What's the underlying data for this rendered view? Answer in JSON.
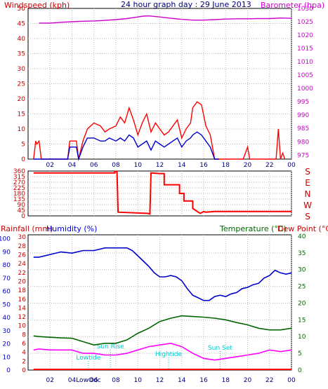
{
  "chart_data": [
    {
      "type": "line",
      "title": "24 hour graph day : 29 June 2013",
      "ylabel_left": "Windspeed (kph)",
      "ylabel_right": "Barometer (hpa)",
      "y_ticks_left": [
        "0",
        "5",
        "10",
        "15",
        "20",
        "25",
        "30",
        "35",
        "40",
        "45",
        "50"
      ],
      "y_ticks_right": [
        "975",
        "980",
        "985",
        "990",
        "995",
        "1000",
        "1005",
        "1010",
        "1015",
        "1020",
        "1025",
        "1030"
      ],
      "x_ticks": [
        "02",
        "04",
        "06",
        "08",
        "10",
        "12",
        "14",
        "16",
        "18",
        "20",
        "22",
        "00"
      ],
      "ylim_left": [
        0,
        50
      ],
      "ylim_right": [
        973.5,
        1030
      ],
      "colors": {
        "gust": "#ff0000",
        "average": "#0000cc",
        "barometer": "#cc00cc",
        "axis_left": "#cc0000",
        "axis_right": "#cc00cc",
        "title": "#000080"
      },
      "series": [
        {
          "name": "Barometer",
          "axis": "right",
          "x": [
            1,
            2,
            3,
            4,
            5,
            6,
            7,
            8,
            9,
            10,
            10.5,
            11,
            12,
            13,
            14,
            15,
            16,
            17,
            18,
            19,
            20,
            21,
            22,
            23,
            24
          ],
          "values": [
            1024.5,
            1024.5,
            1024.8,
            1025,
            1025.2,
            1025.3,
            1025.5,
            1025.8,
            1026.2,
            1026.8,
            1027.1,
            1027.2,
            1026.8,
            1026.3,
            1025.9,
            1025.6,
            1025.6,
            1025.8,
            1026,
            1026.1,
            1026.1,
            1026.2,
            1026.2,
            1026.4,
            1026.3
          ]
        },
        {
          "name": "Gust",
          "axis": "left",
          "x": [
            0.5,
            0.7,
            0.8,
            1,
            1.2,
            3.6,
            3.8,
            4.4,
            4.6,
            5,
            5.4,
            6,
            6.6,
            7,
            7.4,
            8,
            8.4,
            8.8,
            9.2,
            9.6,
            10,
            10.4,
            10.8,
            11.2,
            11.6,
            12,
            12.4,
            12.8,
            13.2,
            13.6,
            14,
            14.4,
            14.8,
            15,
            15.4,
            15.8,
            16.2,
            16.6,
            17,
            17.4,
            19.6,
            20,
            20.2,
            22.6,
            22.8,
            23,
            23.2,
            23.4
          ],
          "values": [
            0,
            6,
            5,
            6,
            0,
            0,
            6,
            6,
            0,
            6,
            10,
            12,
            11,
            9,
            10,
            11,
            14,
            12,
            17,
            13,
            8,
            12,
            15,
            9,
            12,
            10,
            8,
            9,
            11,
            13,
            7,
            10,
            12,
            17,
            19,
            18,
            11,
            8,
            0,
            0,
            0,
            4,
            0,
            0,
            10,
            0,
            2,
            0
          ]
        },
        {
          "name": "Average",
          "axis": "left",
          "x": [
            0.5,
            1,
            3.6,
            3.8,
            4.4,
            4.6,
            5,
            5.4,
            6,
            6.6,
            7,
            7.4,
            8,
            8.4,
            8.8,
            9.2,
            9.6,
            10,
            10.4,
            10.8,
            11.2,
            11.6,
            12,
            12.4,
            12.8,
            13.2,
            13.6,
            14,
            14.4,
            14.8,
            15,
            15.4,
            15.8,
            16.2,
            16.6,
            17,
            17.4
          ],
          "values": [
            0,
            0,
            0,
            4,
            4,
            0,
            4,
            7,
            7,
            6,
            6,
            7,
            6,
            7,
            6,
            8,
            7,
            4,
            5,
            6,
            3,
            6,
            5,
            4,
            5,
            6,
            7,
            4,
            6,
            7,
            8,
            9,
            8,
            6,
            4,
            0,
            0
          ]
        }
      ]
    },
    {
      "type": "line",
      "title": "",
      "ylabel_right": [
        "S",
        "E",
        "N",
        "W",
        "S"
      ],
      "y_ticks_left": [
        "0",
        "45",
        "90",
        "135",
        "180",
        "225",
        "270",
        "315",
        "360"
      ],
      "x_ticks": [
        "02",
        "04",
        "06",
        "08",
        "10",
        "12",
        "14",
        "16",
        "18",
        "20",
        "22",
        "00"
      ],
      "ylim_left": [
        0,
        360
      ],
      "colors": {
        "direction": "#ff0000",
        "axis": "#cc0000"
      },
      "series": [
        {
          "name": "Wind direction",
          "x": [
            0.5,
            7.9,
            7.9,
            8.1,
            8.2,
            10.8,
            10.9,
            11.1,
            11.2,
            12,
            12.4,
            12.4,
            13.8,
            13.8,
            14.2,
            14.2,
            15,
            15,
            15.5,
            15.7,
            16,
            16.2,
            17,
            24
          ],
          "values": [
            345,
            345,
            355,
            355,
            30,
            20,
            20,
            15,
            345,
            340,
            340,
            250,
            250,
            180,
            180,
            120,
            120,
            60,
            30,
            20,
            35,
            30,
            35,
            35
          ]
        }
      ]
    },
    {
      "type": "line",
      "title": "",
      "ylabel_left_1": "Rainfall (mm)",
      "ylabel_left_2": "Humidity (%)",
      "ylabel_right_1": "Temperature (°C)",
      "ylabel_right_2": "Dew Point (°C)",
      "y_ticks_rain": [
        "0",
        "2",
        "4",
        "6",
        "8",
        "10",
        "12",
        "14",
        "16",
        "18",
        "20",
        "22",
        "24",
        "26",
        "28",
        "30"
      ],
      "y_ticks_humidity": [
        "0",
        "10",
        "20",
        "30",
        "40",
        "50",
        "60",
        "70",
        "80",
        "90",
        "100"
      ],
      "y_ticks_temp": [
        "0",
        "5",
        "10",
        "15",
        "20",
        "25",
        "30",
        "35",
        "40"
      ],
      "x_ticks": [
        "02",
        "04",
        "06",
        "08",
        "10",
        "12",
        "14",
        "16",
        "18",
        "20",
        "22",
        "00"
      ],
      "x_tick_special": "LowOdc",
      "ylim_humidity": [
        0,
        103
      ],
      "ylim_temp": [
        0,
        40
      ],
      "colors": {
        "rainfall": "#ff0000",
        "humidity": "#0000cc",
        "temperature": "#006600",
        "dewpoint": "#ff00ff",
        "annotation": "#00cccc",
        "axis_rain": "#cc0000",
        "axis_humidity": "#0000cc",
        "axis_temp": "#006600",
        "axis_dew": "#cc0000"
      },
      "annotations": [
        {
          "text": "Sun Rise",
          "x": 7.5
        },
        {
          "text": "Lowtide",
          "x": 5.5
        },
        {
          "text": "Hightide",
          "x": 12.8
        },
        {
          "text": "Sun Set",
          "x": 17.5
        }
      ],
      "series": [
        {
          "name": "Rainfall",
          "axis": "rain",
          "x": [
            0.5,
            24
          ],
          "values": [
            0,
            0
          ]
        },
        {
          "name": "Humidity",
          "axis": "humidity",
          "x": [
            0.5,
            1,
            2,
            3,
            4,
            5,
            6,
            7,
            8,
            9,
            9.5,
            10,
            10.5,
            11,
            11.5,
            12,
            12.5,
            13,
            13.5,
            14,
            14.5,
            15,
            15.5,
            16,
            16.5,
            17,
            17.5,
            18,
            18.5,
            19,
            19.5,
            20,
            20.5,
            21,
            21.5,
            22,
            22.5,
            23,
            23.5,
            24
          ],
          "values": [
            86,
            86,
            88,
            90,
            89,
            91,
            91,
            93,
            93,
            93,
            91,
            87,
            83,
            79,
            74,
            71,
            71,
            72,
            71,
            68,
            62,
            57,
            55,
            53,
            53,
            56,
            57,
            56,
            58,
            59,
            62,
            63,
            65,
            66,
            70,
            72,
            76,
            74,
            73,
            74
          ]
        },
        {
          "name": "Temperature",
          "axis": "temp",
          "x": [
            0.5,
            1,
            2,
            3,
            4,
            5,
            6,
            7,
            8,
            9,
            10,
            11,
            12,
            13,
            14,
            15,
            16,
            17,
            18,
            19,
            20,
            21,
            22,
            23,
            24
          ],
          "values": [
            10.2,
            10,
            9.8,
            9.6,
            9.5,
            8.5,
            7.5,
            8,
            8,
            9,
            11,
            12.5,
            14.5,
            15.5,
            16.2,
            16,
            15.8,
            15.5,
            15,
            14.2,
            13.5,
            12.5,
            12,
            12,
            12.5
          ]
        },
        {
          "name": "Dew Point",
          "axis": "temp",
          "x": [
            0.5,
            1,
            2,
            3,
            4,
            5,
            6,
            7,
            8,
            9,
            10,
            11,
            12,
            13,
            14,
            15,
            16,
            17,
            18,
            19,
            20,
            21,
            22,
            23,
            24
          ],
          "values": [
            6,
            6.3,
            6,
            6,
            6,
            5,
            5,
            4.5,
            4.5,
            5,
            6,
            7,
            7.5,
            8,
            7,
            5,
            3.5,
            3,
            3.5,
            4,
            4.5,
            5,
            6,
            5.5,
            6
          ]
        }
      ]
    }
  ]
}
